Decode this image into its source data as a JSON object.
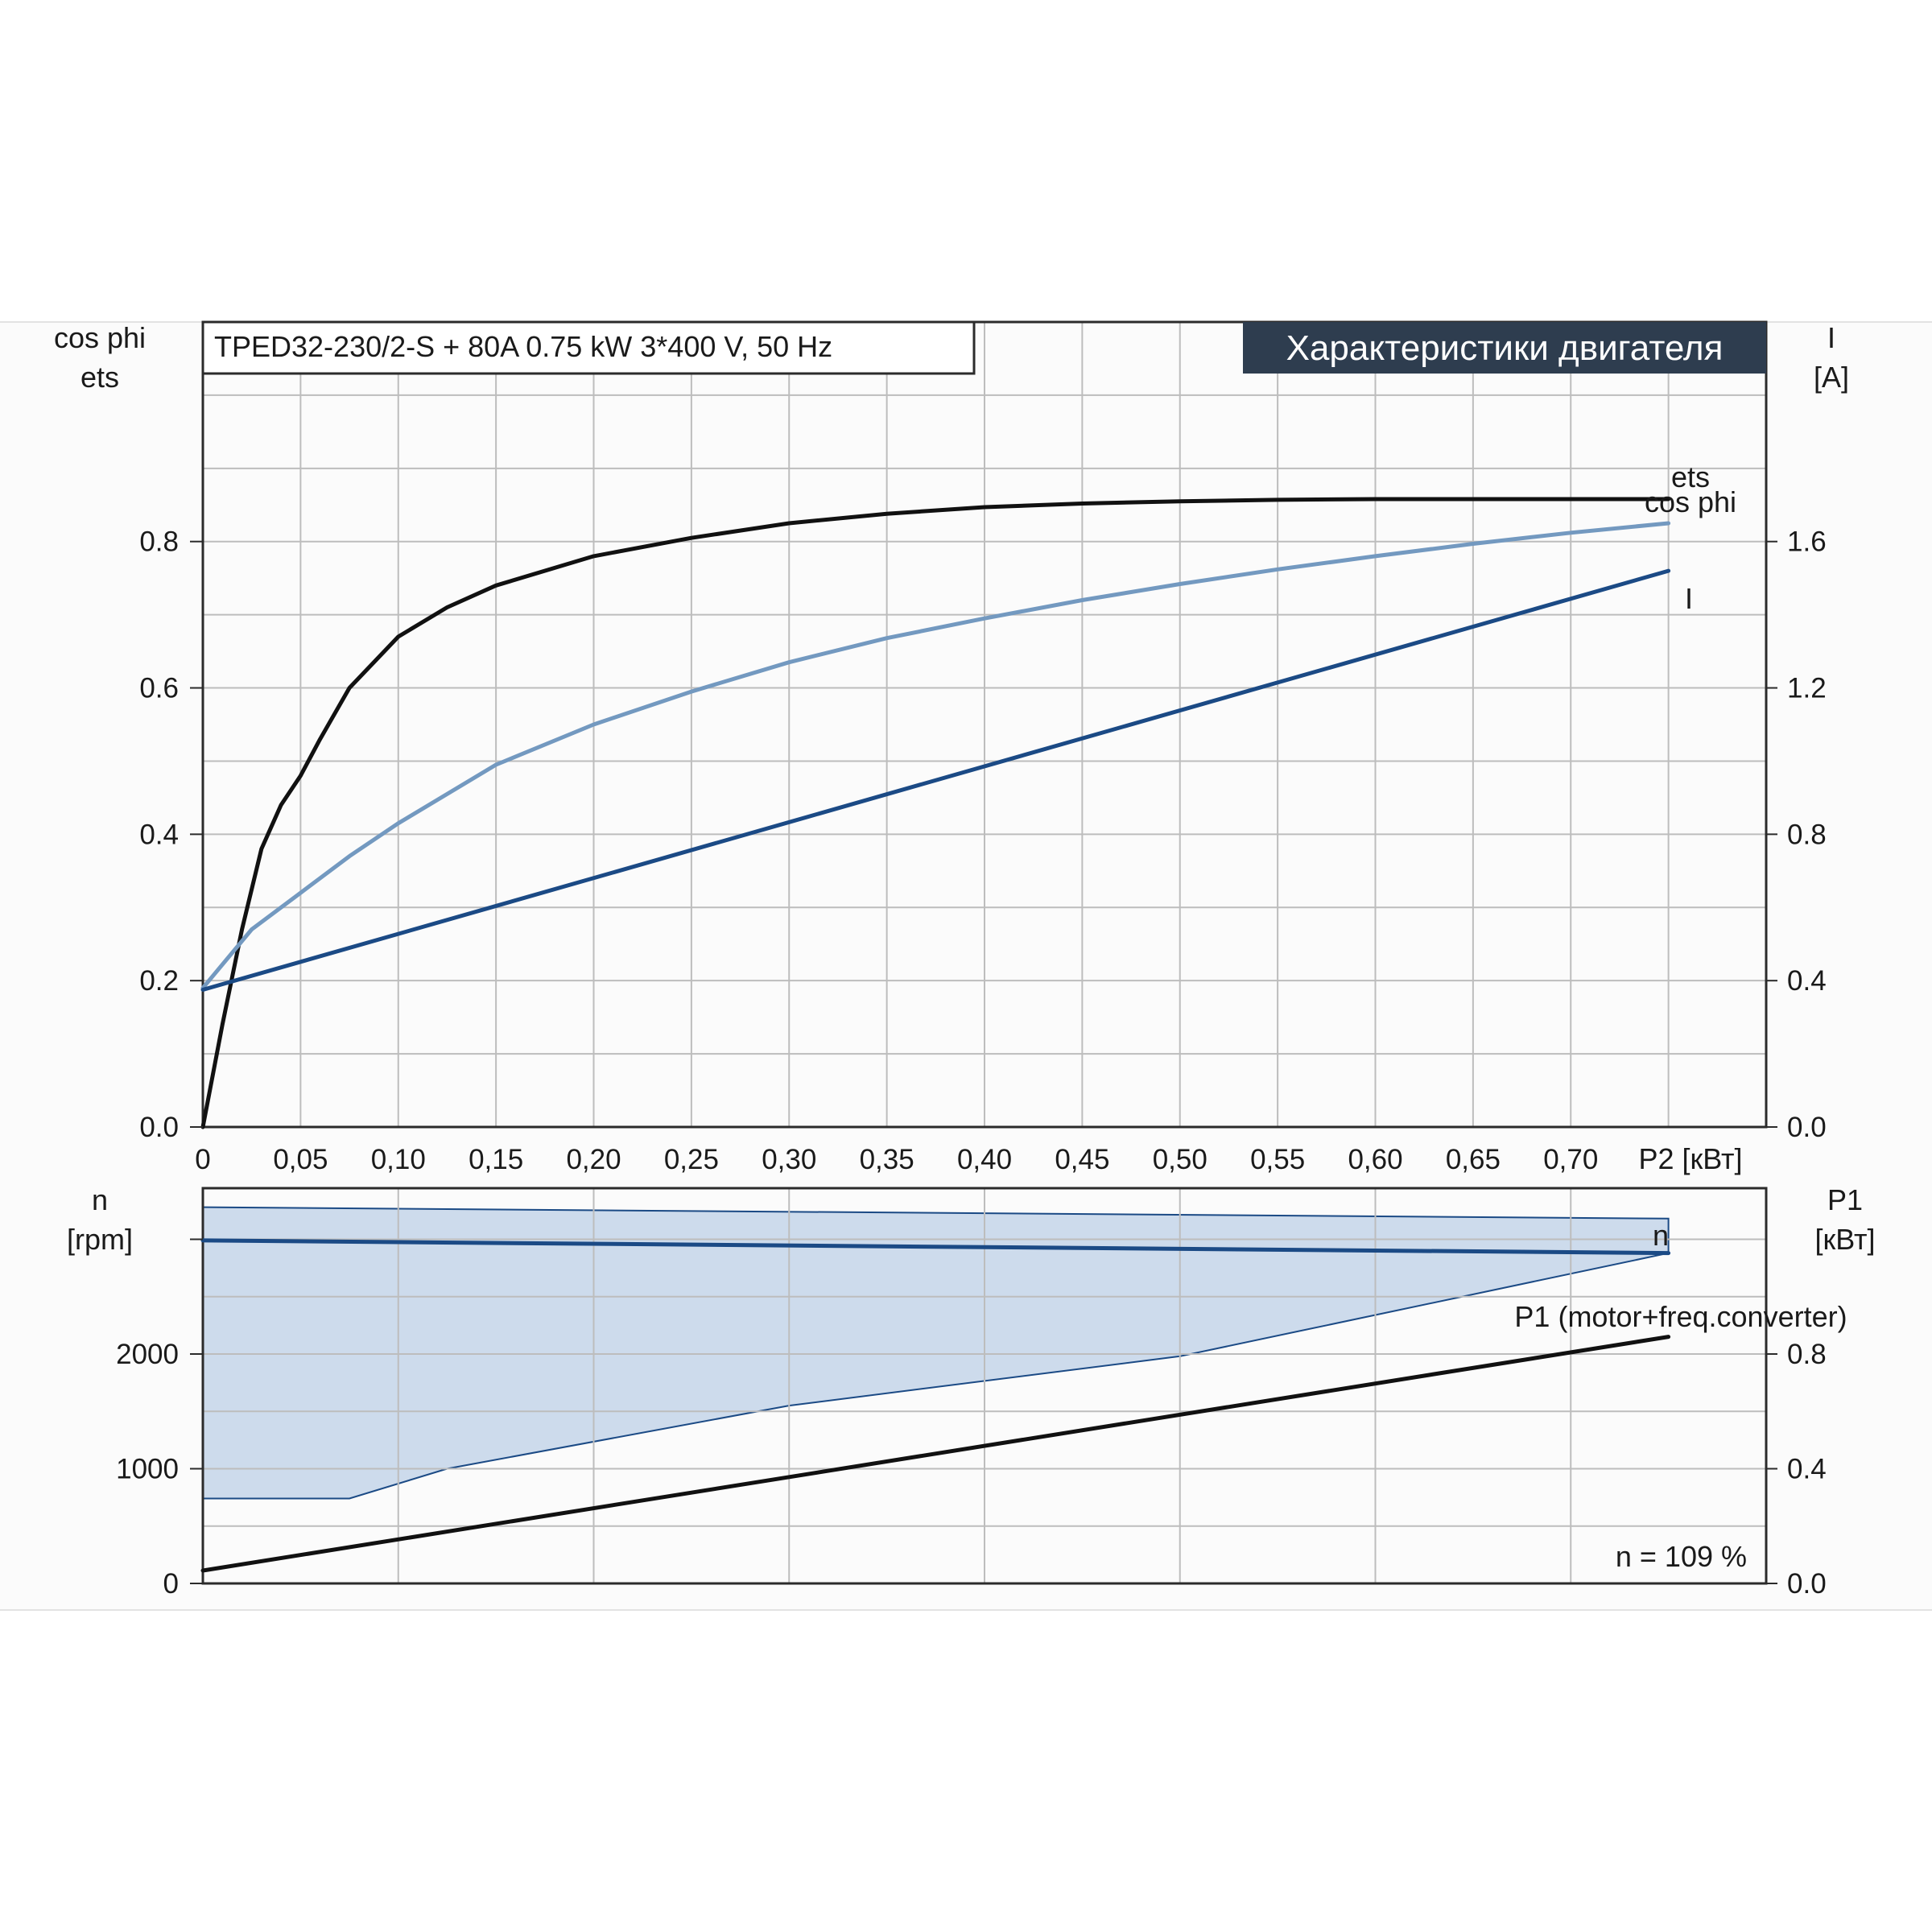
{
  "title_box": "TPED32-230/2-S + 80A   0.75 kW   3*400 V, 50 Hz",
  "header": "Характеристики двигателя",
  "colors": {
    "ets": "#111111",
    "cos_phi": "#7399c0",
    "I": "#1b4a85",
    "n": "#1b4a85",
    "P1": "#111111",
    "band_fill": "#cddbec",
    "header_bg": "#2e3d4f"
  },
  "top_chart": {
    "left_axis_label_1": "cos phi",
    "left_axis_label_2": "ets",
    "right_axis_label_1": "I",
    "right_axis_label_2": "[A]",
    "x_label": "P2 [кВт]",
    "x_ticks": [
      "0",
      "0,05",
      "0,10",
      "0,15",
      "0,20",
      "0,25",
      "0,30",
      "0,35",
      "0,40",
      "0,45",
      "0,50",
      "0,55",
      "0,60",
      "0,65",
      "0,70"
    ],
    "y_left_ticks": [
      "0.0",
      "0.2",
      "0.4",
      "0.6",
      "0.8"
    ],
    "y_right_ticks": [
      "0.0",
      "0.4",
      "0.8",
      "1.2",
      "1.6"
    ],
    "series_labels": {
      "ets": "ets",
      "cos_phi": "cos phi",
      "I": "I"
    }
  },
  "bottom_chart": {
    "left_axis_label_1": "n",
    "left_axis_label_2": "[rpm]",
    "right_axis_label_1": "P1",
    "right_axis_label_2": "[кВт]",
    "y_left_ticks": [
      "0",
      "1000",
      "2000"
    ],
    "y_right_ticks": [
      "0.0",
      "0.4",
      "0.8"
    ],
    "series_labels": {
      "n": "n",
      "P1": "P1 (motor+freq.converter)"
    },
    "note": "n = 109 %"
  },
  "chart_data": [
    {
      "type": "line",
      "title": "TPED32-230/2-S + 80A   0.75 kW   3*400 V, 50 Hz",
      "xlabel": "P2 [кВт]",
      "ylabel": "cos phi / ets",
      "ylabel_right": "I [A]",
      "xlim": [
        0,
        0.8
      ],
      "ylim": [
        0,
        1.1
      ],
      "ylim_right": [
        0,
        2.2
      ],
      "grid": true,
      "series": [
        {
          "name": "ets",
          "axis": "left",
          "x": [
            0,
            0.01,
            0.02,
            0.03,
            0.04,
            0.05,
            0.06,
            0.075,
            0.1,
            0.125,
            0.15,
            0.2,
            0.25,
            0.3,
            0.35,
            0.4,
            0.45,
            0.5,
            0.55,
            0.6,
            0.65,
            0.7,
            0.75
          ],
          "y": [
            0.0,
            0.14,
            0.27,
            0.38,
            0.44,
            0.48,
            0.53,
            0.6,
            0.67,
            0.71,
            0.74,
            0.78,
            0.805,
            0.825,
            0.838,
            0.847,
            0.852,
            0.855,
            0.857,
            0.858,
            0.858,
            0.858,
            0.858
          ]
        },
        {
          "name": "cos phi",
          "axis": "left",
          "x": [
            0,
            0.025,
            0.05,
            0.075,
            0.1,
            0.15,
            0.2,
            0.25,
            0.3,
            0.35,
            0.4,
            0.45,
            0.5,
            0.55,
            0.6,
            0.65,
            0.7,
            0.75
          ],
          "y": [
            0.19,
            0.27,
            0.32,
            0.37,
            0.415,
            0.495,
            0.55,
            0.595,
            0.635,
            0.668,
            0.695,
            0.72,
            0.742,
            0.762,
            0.78,
            0.797,
            0.812,
            0.825
          ]
        },
        {
          "name": "I",
          "axis": "right",
          "x": [
            0,
            0.75
          ],
          "y": [
            0.375,
            1.52
          ]
        }
      ]
    },
    {
      "type": "line",
      "xlabel": "P2 [кВт]",
      "ylabel": "n [rpm]",
      "ylabel_right": "P1 [кВт]",
      "xlim": [
        0,
        0.8
      ],
      "ylim": [
        0,
        3000
      ],
      "ylim_right": [
        0,
        1.2
      ],
      "grid": true,
      "series": [
        {
          "name": "n",
          "axis": "left",
          "x": [
            0,
            0.75
          ],
          "y": [
            2990,
            2880
          ]
        },
        {
          "name": "P1 (motor+freq.converter)",
          "axis": "right",
          "x": [
            0,
            0.75
          ],
          "y": [
            0.045,
            0.86
          ]
        }
      ],
      "band": {
        "upper": {
          "x": [
            0,
            0.75
          ],
          "y": [
            3280,
            3180
          ]
        },
        "lower": {
          "x": [
            0,
            0.075,
            0.125,
            0.3,
            0.5,
            0.75
          ],
          "y": [
            740,
            740,
            1000,
            1550,
            1980,
            2880
          ]
        }
      },
      "annotation": "n = 109 %"
    }
  ]
}
